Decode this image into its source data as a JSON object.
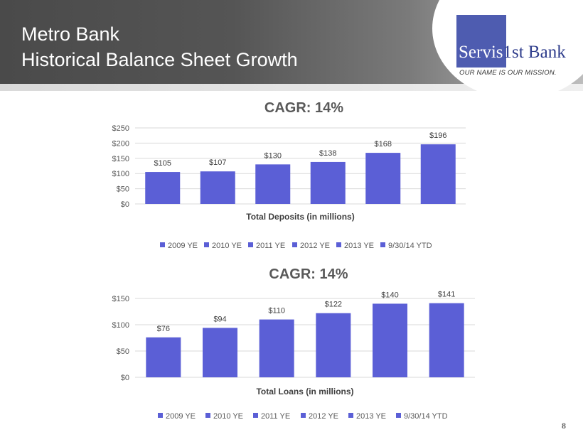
{
  "header": {
    "title_line1": "Metro Bank",
    "title_line2": "Historical Balance Sheet Growth"
  },
  "logo": {
    "name_part1": "Servis",
    "name_part2": "1st Bank",
    "tagline": "OUR NAME IS OUR MISSION."
  },
  "page_number": "8",
  "colors": {
    "bar": "#5b5fd6",
    "grid": "#d9d9d9",
    "logo_blue": "#4e5cb0"
  },
  "chart_data": [
    {
      "type": "bar",
      "title": "CAGR: 14%",
      "xlabel": "Total Deposits (in millions)",
      "ylabel": "",
      "categories": [
        "2009 YE",
        "2010 YE",
        "2011 YE",
        "2012 YE",
        "2013 YE",
        "9/30/14 YTD"
      ],
      "values": [
        105,
        107,
        130,
        138,
        168,
        196
      ],
      "value_labels": [
        "$105",
        "$107",
        "$130",
        "$138",
        "$168",
        "$196"
      ],
      "yticks": [
        0,
        50,
        100,
        150,
        200,
        250
      ],
      "ytick_labels": [
        "$0",
        "$50",
        "$100",
        "$150",
        "$200",
        "$250"
      ],
      "ylim": [
        0,
        250
      ],
      "grid": true,
      "legend": "bottom"
    },
    {
      "type": "bar",
      "title": "CAGR: 14%",
      "xlabel": "Total Loans (in millions)",
      "ylabel": "",
      "categories": [
        "2009 YE",
        "2010 YE",
        "2011 YE",
        "2012 YE",
        "2013 YE",
        "9/30/14 YTD"
      ],
      "values": [
        76,
        94,
        110,
        122,
        140,
        141
      ],
      "value_labels": [
        "$76",
        "$94",
        "$110",
        "$122",
        "$140",
        "$141"
      ],
      "yticks": [
        0,
        50,
        100,
        150
      ],
      "ytick_labels": [
        "$0",
        "$50",
        "$100",
        "$150"
      ],
      "ylim": [
        0,
        150
      ],
      "grid": true,
      "legend": "bottom"
    }
  ]
}
